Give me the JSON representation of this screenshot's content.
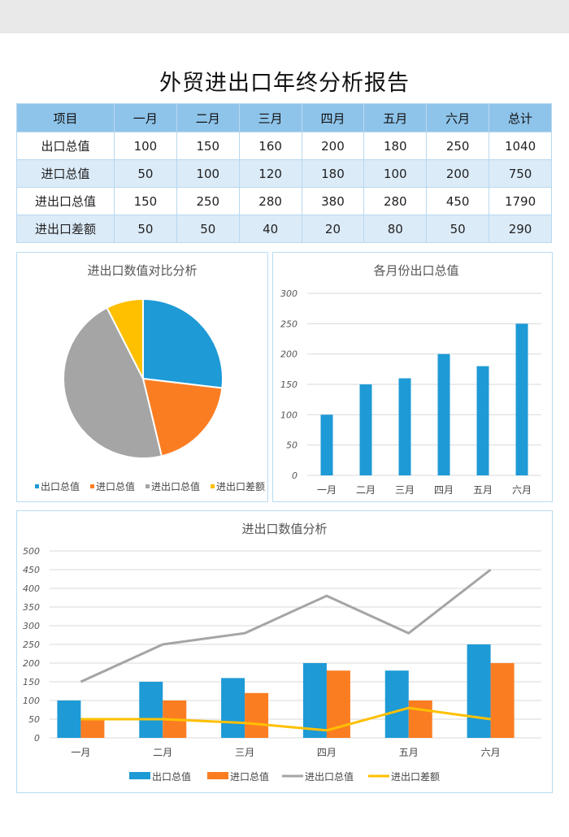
{
  "title": "外贸进出口年终分析报告",
  "table": {
    "headers": [
      "项目",
      "一月",
      "二月",
      "三月",
      "四月",
      "五月",
      "六月",
      "总计"
    ],
    "rows": [
      {
        "label": "出口总值",
        "values": [
          "100",
          "150",
          "160",
          "200",
          "180",
          "250",
          "1040"
        ]
      },
      {
        "label": "进口总值",
        "values": [
          "50",
          "100",
          "120",
          "180",
          "100",
          "200",
          "750"
        ]
      },
      {
        "label": "进出口总值",
        "values": [
          "150",
          "250",
          "280",
          "380",
          "280",
          "450",
          "1790"
        ]
      },
      {
        "label": "进出口差额",
        "values": [
          "50",
          "50",
          "40",
          "20",
          "80",
          "50",
          "290"
        ]
      }
    ]
  },
  "colors": {
    "export": "#1e9ad6",
    "import": "#fb7d22",
    "total": "#a5a5a5",
    "diff": "#ffc000",
    "header_bg": "#8fc4ea",
    "row_alt_bg": "#dcebf8",
    "border": "#b9dcf1"
  },
  "chart_data": [
    {
      "type": "pie",
      "title": "进出口数值对比分析",
      "categories": [
        "出口总值",
        "进口总值",
        "进出口总值",
        "进出口差额"
      ],
      "values": [
        1040,
        750,
        1790,
        290
      ],
      "legend": [
        "出口总值",
        "进口总值",
        "进出口总值",
        "进出口差额"
      ],
      "legend_position": "bottom"
    },
    {
      "type": "bar",
      "title": "各月份出口总值",
      "categories": [
        "一月",
        "二月",
        "三月",
        "四月",
        "五月",
        "六月"
      ],
      "values": [
        100,
        150,
        160,
        200,
        180,
        250
      ],
      "yticks": [
        "0",
        "50",
        "100",
        "150",
        "200",
        "250",
        "300"
      ],
      "ylim": [
        0,
        300
      ],
      "grid": true,
      "xlabel": "",
      "ylabel": ""
    },
    {
      "type": "bar",
      "title": "进出口数值分析",
      "categories": [
        "一月",
        "二月",
        "三月",
        "四月",
        "五月",
        "六月"
      ],
      "series": [
        {
          "name": "出口总值",
          "kind": "bar",
          "values": [
            100,
            150,
            160,
            200,
            180,
            250
          ]
        },
        {
          "name": "进口总值",
          "kind": "bar",
          "values": [
            50,
            100,
            120,
            180,
            100,
            200
          ]
        },
        {
          "name": "进出口总值",
          "kind": "line",
          "values": [
            150,
            250,
            280,
            380,
            280,
            450
          ]
        },
        {
          "name": "进出口差额",
          "kind": "line",
          "values": [
            50,
            50,
            40,
            20,
            80,
            50
          ]
        }
      ],
      "yticks": [
        "0",
        "50",
        "100",
        "150",
        "200",
        "250",
        "300",
        "350",
        "400",
        "450",
        "500"
      ],
      "ylim": [
        0,
        500
      ],
      "grid": true,
      "legend_position": "bottom",
      "xlabel": "",
      "ylabel": ""
    }
  ]
}
